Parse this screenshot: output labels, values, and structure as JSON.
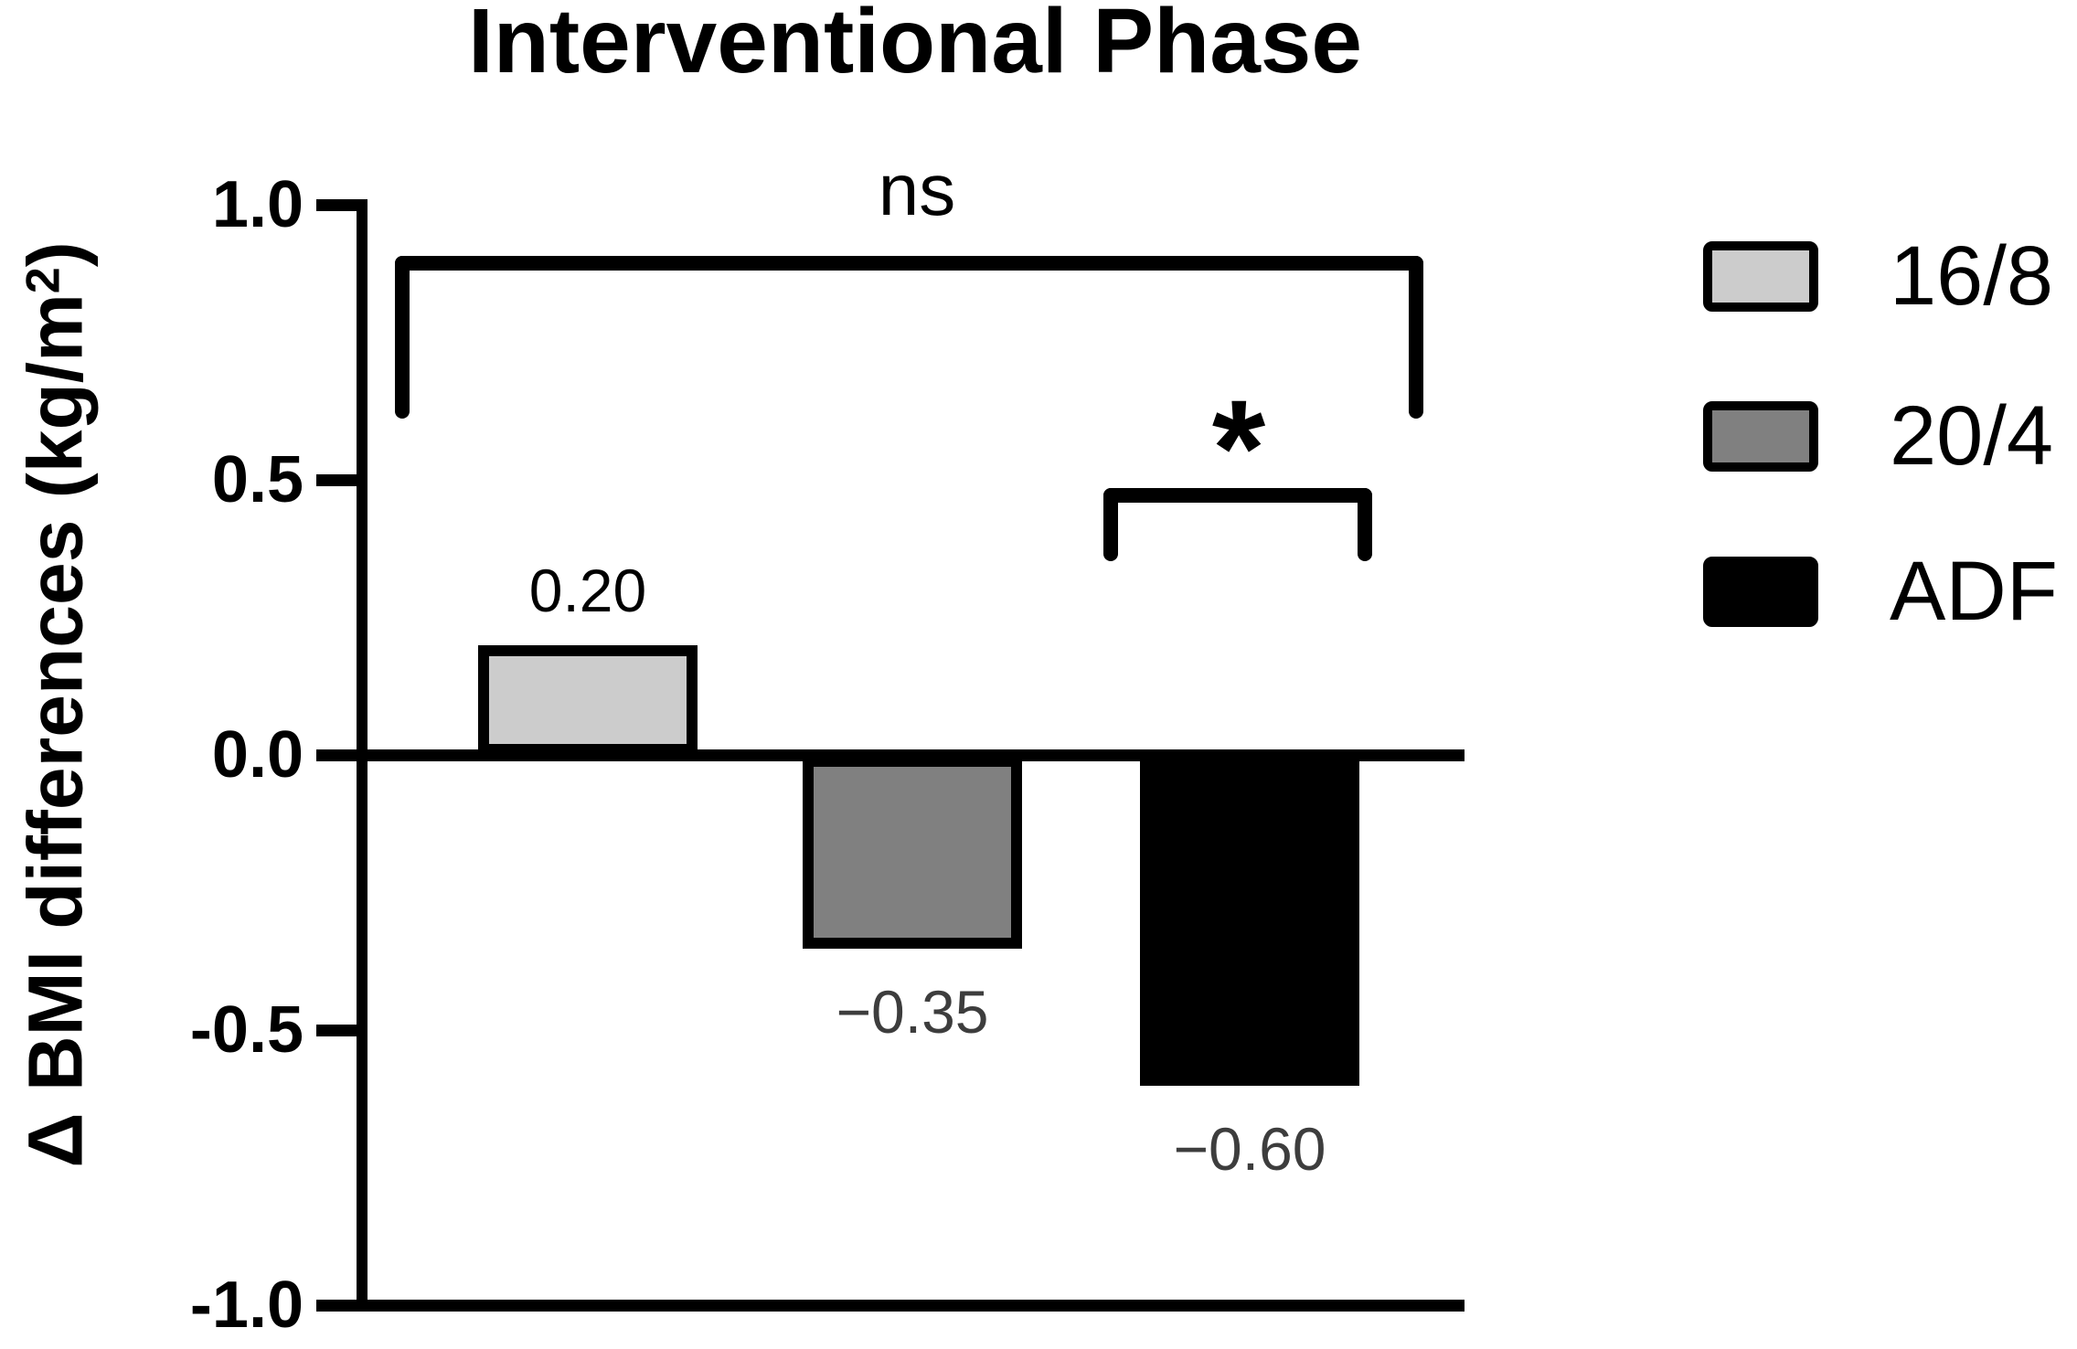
{
  "title": "Interventional Phase",
  "y_axis": {
    "label_prefix": "Δ BMI differences (kg/m",
    "label_sup": "2",
    "label_suffix": ")",
    "ticks": [
      {
        "value": 1.0,
        "label": "1.0"
      },
      {
        "value": 0.5,
        "label": "0.5"
      },
      {
        "value": 0.0,
        "label": "0.0"
      },
      {
        "value": -0.5,
        "label": "-0.5"
      },
      {
        "value": -1.0,
        "label": "-1.0"
      }
    ]
  },
  "legend": {
    "items": [
      {
        "label": "16/8",
        "color": "#cccccc"
      },
      {
        "label": "20/4",
        "color": "#808080"
      },
      {
        "label": "ADF",
        "color": "#000000"
      }
    ]
  },
  "colors": {
    "axis": "#000000",
    "bar_label_positive": "#000000",
    "bar_label_negative": "#3d3d3d"
  },
  "chart_data": {
    "type": "bar",
    "title": "Interventional Phase",
    "categories": [
      "16/8",
      "20/4",
      "ADF"
    ],
    "values": [
      0.2,
      -0.35,
      -0.6
    ],
    "bar_labels": [
      "0.20",
      "−0.35",
      "−0.60"
    ],
    "bar_colors": [
      "#cccccc",
      "#808080",
      "#000000"
    ],
    "xlabel": "",
    "ylabel": "Δ BMI differences (kg/m²)",
    "ylim": [
      -1.0,
      1.0
    ],
    "yticks": [
      1.0,
      0.5,
      0.0,
      -0.5,
      -1.0
    ],
    "grid": false,
    "legend_position": "right",
    "annotations": [
      {
        "type": "bracket",
        "label": "ns",
        "between": [
          "16/8",
          "ADF"
        ],
        "significant": false
      },
      {
        "type": "bracket",
        "label": "*",
        "between": [
          "20/4",
          "ADF"
        ],
        "significant": true
      }
    ]
  }
}
